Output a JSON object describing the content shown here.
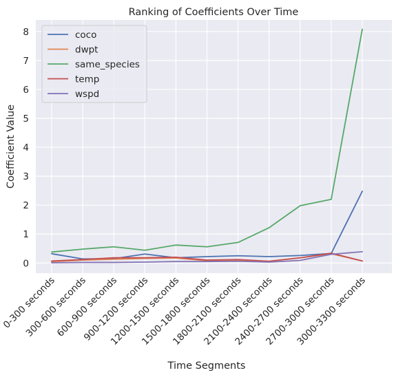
{
  "chart_data": {
    "type": "line",
    "title": "Ranking of Coefficients Over Time",
    "xlabel": "Time Segments",
    "ylabel": "Coefficient Value",
    "categories": [
      "0-300 seconds",
      "300-600 seconds",
      "600-900 seconds",
      "900-1200 seconds",
      "1200-1500 seconds",
      "1500-1800 seconds",
      "1800-2100 seconds",
      "2100-2400 seconds",
      "2400-2700 seconds",
      "2700-3000 seconds",
      "3000-3300 seconds"
    ],
    "ylim": [
      -0.35,
      8.4
    ],
    "yticks": [
      0,
      1,
      2,
      3,
      4,
      5,
      6,
      7,
      8
    ],
    "grid": true,
    "legend_position": "top-left",
    "series": [
      {
        "name": "coco",
        "color": "#4c72b0",
        "values": [
          0.32,
          0.14,
          0.15,
          0.31,
          0.18,
          0.22,
          0.25,
          0.22,
          0.26,
          0.33,
          2.48
        ]
      },
      {
        "name": "dwpt",
        "color": "#dd8452",
        "values": [
          0.05,
          0.1,
          0.13,
          0.16,
          0.17,
          0.08,
          0.1,
          0.06,
          0.18,
          0.32,
          0.07
        ]
      },
      {
        "name": "same_species",
        "color": "#55a868",
        "values": [
          0.38,
          0.48,
          0.56,
          0.44,
          0.62,
          0.56,
          0.71,
          1.22,
          1.98,
          2.2,
          8.08
        ]
      },
      {
        "name": "temp",
        "color": "#c44e52",
        "values": [
          0.07,
          0.12,
          0.18,
          0.18,
          0.2,
          0.1,
          0.12,
          0.06,
          0.18,
          0.34,
          0.07
        ]
      },
      {
        "name": "wspd",
        "color": "#8172b3",
        "values": [
          0.01,
          0.02,
          0.02,
          0.03,
          0.05,
          0.05,
          0.06,
          0.03,
          0.09,
          0.3,
          0.39
        ]
      }
    ]
  }
}
